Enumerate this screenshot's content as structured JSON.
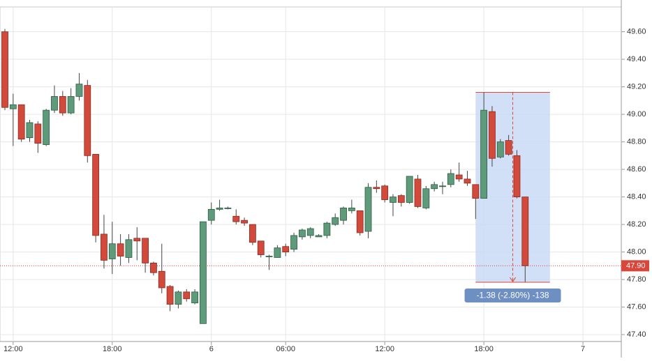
{
  "chart_data": {
    "type": "candlestick",
    "categories": [
      null,
      "12:00",
      null,
      null,
      null,
      null,
      null,
      null,
      null,
      null,
      null,
      null,
      null,
      "18:00",
      null,
      null,
      null,
      null,
      null,
      null,
      null,
      null,
      null,
      null,
      null,
      "6",
      null,
      null,
      null,
      null,
      null,
      null,
      null,
      null,
      "06:00",
      null,
      null,
      null,
      null,
      null,
      null,
      null,
      null,
      null,
      null,
      null,
      "12:00",
      null,
      null,
      null,
      null,
      null,
      null,
      null,
      null,
      null,
      null,
      null,
      "18:00",
      null,
      null,
      null,
      null,
      null,
      null,
      null,
      null,
      null,
      null,
      null,
      "7",
      null,
      null,
      null,
      null
    ],
    "open": [
      49.6,
      49.04,
      49.07,
      48.83,
      48.93,
      48.78,
      49.03,
      49.13,
      49.01,
      49.13,
      49.21,
      48.71,
      48.13,
      47.95,
      48.06,
      47.96,
      48.1,
      48.1,
      47.92,
      47.86,
      47.75,
      47.62,
      47.71,
      47.63,
      47.48,
      48.23,
      48.31,
      48.32,
      48.26,
      48.23,
      48.2,
      48.08,
      47.97,
      47.96,
      48.04,
      48.02,
      48.11,
      48.12,
      48.11,
      48.12,
      48.2,
      48.23,
      48.3,
      48.3,
      48.15,
      48.47,
      48.48,
      48.36,
      48.41,
      48.36,
      48.53,
      48.32,
      48.46,
      48.48,
      48.49,
      48.56,
      48.53,
      48.49,
      48.39,
      49.02,
      48.69,
      48.81,
      48.7,
      48.4,
      null,
      null,
      null,
      null,
      null,
      null,
      null,
      null,
      null,
      null,
      null
    ],
    "high": [
      49.62,
      49.15,
      49.07,
      48.96,
      48.95,
      49.04,
      49.21,
      49.17,
      49.19,
      49.3,
      49.25,
      48.71,
      48.27,
      48.22,
      48.13,
      48.13,
      48.18,
      48.1,
      47.93,
      48.06,
      47.76,
      47.72,
      47.73,
      47.73,
      48.22,
      48.36,
      48.38,
      48.33,
      48.31,
      48.25,
      48.2,
      48.08,
      47.98,
      48.05,
      48.06,
      48.14,
      48.17,
      48.18,
      48.13,
      48.22,
      48.28,
      48.33,
      48.38,
      48.3,
      48.5,
      48.52,
      48.49,
      48.42,
      48.42,
      48.55,
      48.56,
      48.48,
      48.51,
      48.51,
      48.6,
      48.65,
      48.59,
      48.49,
      49.16,
      49.06,
      48.82,
      48.85,
      48.74,
      48.4,
      null,
      null,
      null,
      null,
      null,
      null,
      null,
      null,
      null,
      null,
      null
    ],
    "low": [
      49.03,
      48.77,
      48.8,
      48.8,
      48.72,
      48.77,
      49.01,
      48.99,
      49.0,
      49.1,
      48.65,
      48.07,
      47.88,
      47.84,
      47.9,
      47.92,
      47.94,
      47.85,
      47.83,
      47.7,
      47.57,
      47.59,
      47.64,
      47.62,
      47.48,
      48.2,
      48.3,
      48.31,
      48.2,
      48.19,
      48.05,
      47.96,
      47.87,
      47.96,
      47.97,
      48.0,
      48.09,
      48.1,
      48.11,
      48.1,
      48.19,
      48.2,
      48.28,
      48.12,
      48.1,
      48.43,
      48.36,
      48.26,
      48.33,
      48.35,
      48.32,
      48.31,
      48.44,
      48.42,
      48.47,
      48.51,
      48.48,
      48.24,
      48.39,
      48.62,
      48.68,
      48.7,
      48.39,
      47.78,
      null,
      null,
      null,
      null,
      null,
      null,
      null,
      null,
      null,
      null,
      null
    ],
    "close": [
      49.05,
      49.07,
      48.82,
      48.94,
      48.79,
      49.03,
      49.13,
      49.01,
      49.13,
      49.22,
      48.7,
      48.12,
      47.94,
      48.06,
      47.97,
      48.09,
      48.08,
      47.92,
      47.85,
      47.74,
      47.62,
      47.71,
      47.66,
      47.71,
      48.22,
      48.31,
      48.32,
      48.32,
      48.22,
      48.21,
      48.07,
      47.98,
      47.97,
      48.03,
      48.0,
      48.12,
      48.16,
      48.17,
      48.12,
      48.21,
      48.25,
      48.32,
      48.32,
      48.14,
      48.47,
      48.46,
      48.38,
      48.4,
      48.36,
      48.55,
      48.33,
      48.46,
      48.49,
      48.48,
      48.57,
      48.53,
      48.5,
      48.39,
      49.03,
      48.68,
      48.8,
      48.71,
      48.4,
      47.9,
      null,
      null,
      null,
      null,
      null,
      null,
      null,
      null,
      null,
      null,
      null
    ],
    "up_color": "#5e9b7a",
    "down_color": "#d14a3c",
    "ylim": [
      47.35,
      49.78
    ],
    "yticks": [
      {
        "value": 47.4,
        "label": "47.40"
      },
      {
        "value": 47.6,
        "label": "47.60"
      },
      {
        "value": 47.8,
        "label": "47.80"
      },
      {
        "value": 48.0,
        "label": "48.00"
      },
      {
        "value": 48.2,
        "label": "48.20"
      },
      {
        "value": 48.4,
        "label": "48.40"
      },
      {
        "value": 48.6,
        "label": "48.60"
      },
      {
        "value": 48.8,
        "label": "48.80"
      },
      {
        "value": 49.0,
        "label": "49.00"
      },
      {
        "value": 49.2,
        "label": "49.20"
      },
      {
        "value": 49.4,
        "label": "49.40"
      },
      {
        "value": 49.6,
        "label": "49.60"
      }
    ],
    "grid": true,
    "last_price": {
      "value": 47.9,
      "label": "47.90"
    },
    "measure": {
      "start": 57,
      "end": 66,
      "high": 49.16,
      "low": 47.78,
      "label": "-1.38 (-2.80%) -138"
    }
  }
}
